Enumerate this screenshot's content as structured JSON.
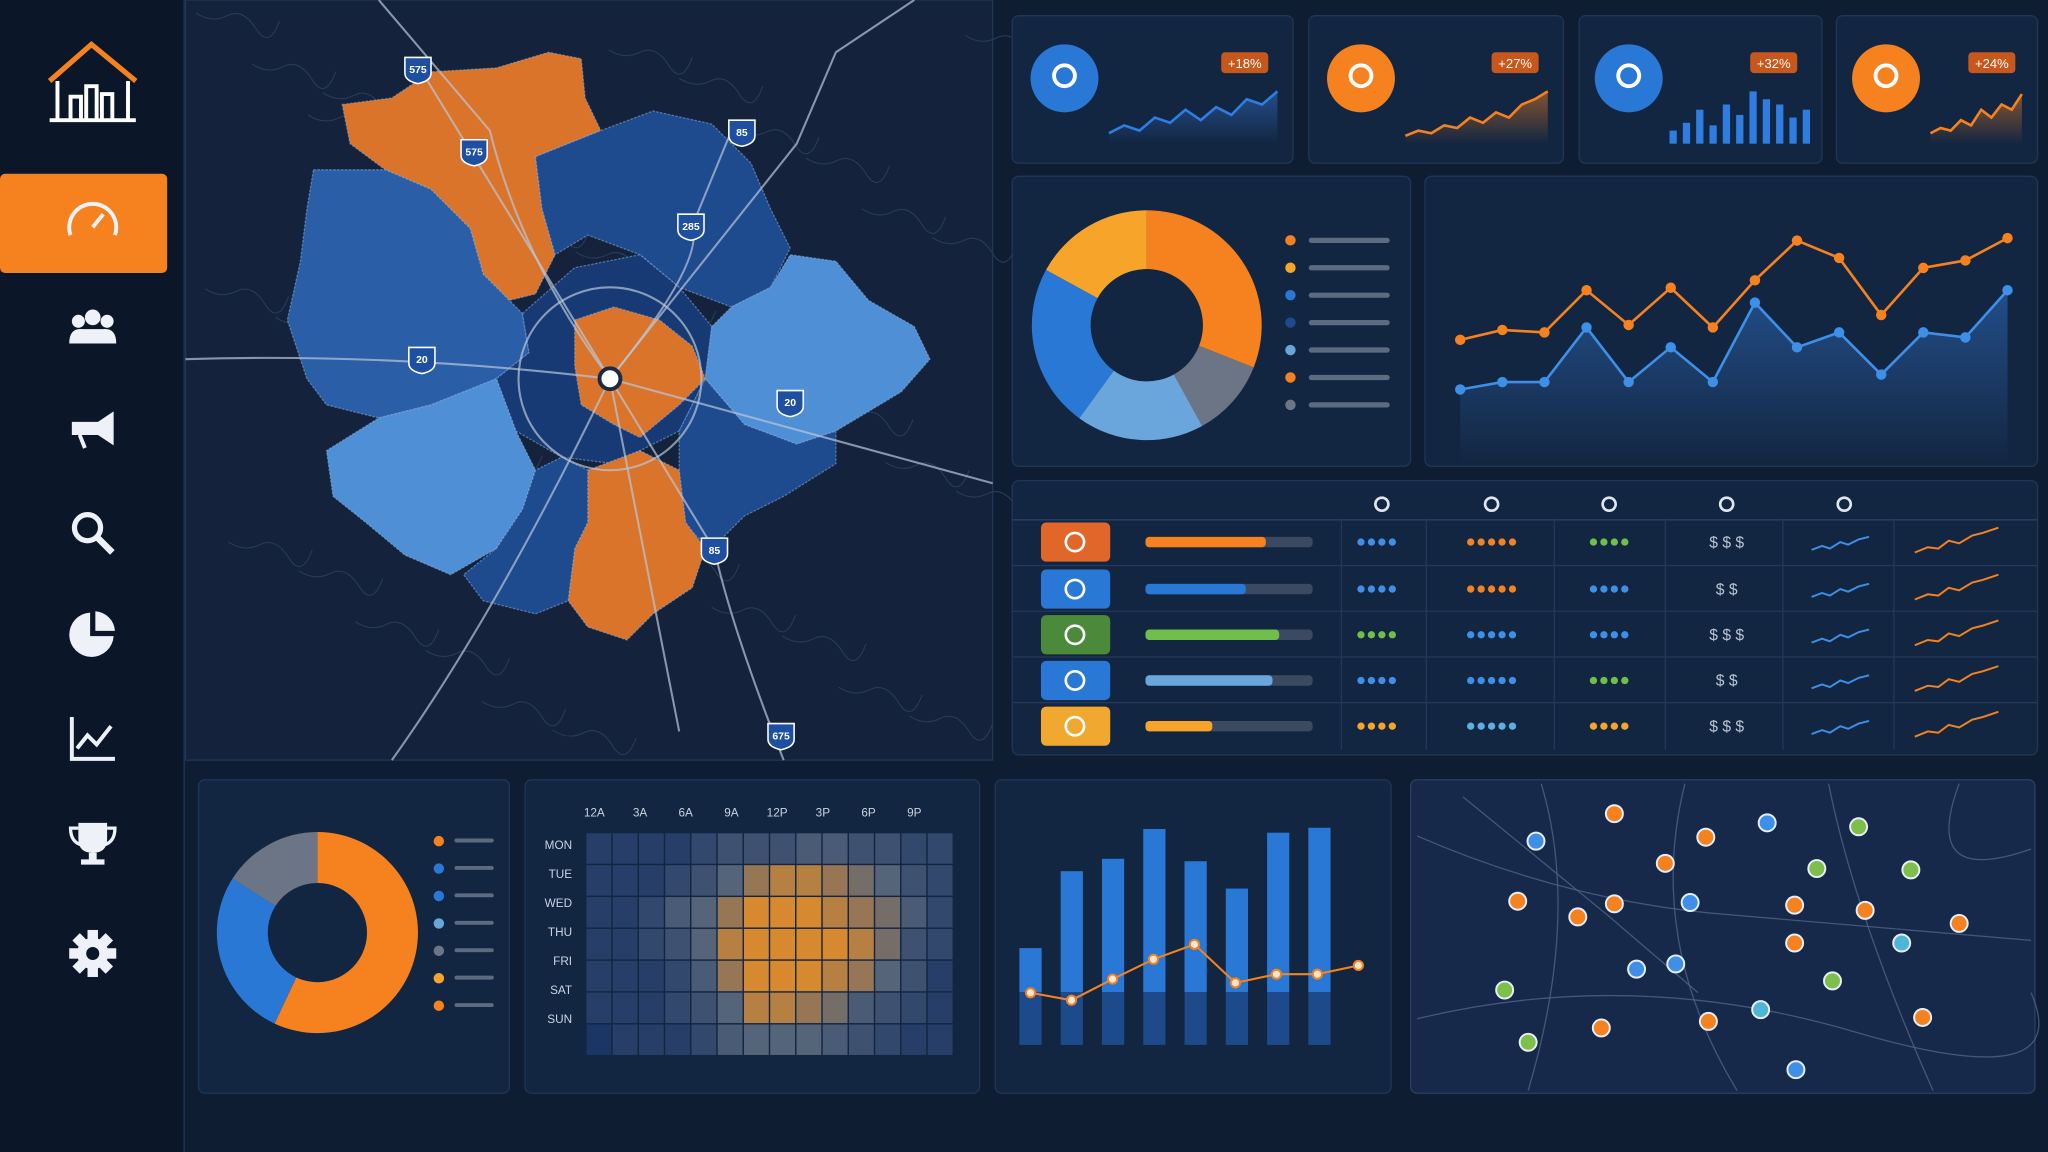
{
  "map": {
    "highways": [
      {
        "label": "575"
      },
      {
        "label": "575"
      },
      {
        "label": "85"
      },
      {
        "label": "285"
      },
      {
        "label": "20"
      },
      {
        "label": "20"
      },
      {
        "label": "85"
      },
      {
        "label": "675"
      }
    ]
  },
  "kpis": [
    {
      "change": "+18%",
      "type": "line",
      "color": "#2f7de1",
      "ylim": [
        0,
        50
      ],
      "values": [
        8,
        14,
        10,
        20,
        16,
        26,
        18,
        28,
        22,
        34,
        30,
        40
      ]
    },
    {
      "change": "+27%",
      "type": "area",
      "color": "#f5821f",
      "ylim": [
        0,
        50
      ],
      "values": [
        6,
        10,
        8,
        14,
        12,
        20,
        16,
        24,
        20,
        30,
        34,
        40
      ]
    },
    {
      "change": "+32%",
      "type": "bar",
      "color": "#2f7de1",
      "ylim": [
        0,
        50
      ],
      "values": [
        10,
        16,
        26,
        14,
        30,
        22,
        40,
        34,
        30,
        20,
        26
      ]
    },
    {
      "change": "+24%",
      "type": "area",
      "color": "#f5821f",
      "ylim": [
        0,
        50
      ],
      "values": [
        8,
        12,
        10,
        18,
        14,
        26,
        20,
        30,
        26,
        38
      ]
    }
  ],
  "donut": {
    "values": [
      31,
      11,
      18,
      23,
      17
    ],
    "colors": [
      "#f5821f",
      "#6b7585",
      "#6aa6dc",
      "#2a78d6",
      "#f7a52a"
    ]
  },
  "line_chart": {
    "ylim": [
      0,
      100
    ],
    "series": [
      {
        "color": "#f5821f",
        "values": [
          42,
          46,
          45,
          62,
          48,
          63,
          47,
          66,
          82,
          75,
          52,
          71,
          74,
          83
        ]
      },
      {
        "color": "#3d8fe8",
        "values": [
          22,
          25,
          25,
          47,
          25,
          39,
          25,
          57,
          39,
          45,
          28,
          45,
          43,
          62
        ]
      }
    ]
  },
  "table": {
    "rows": [
      {
        "color": "#e0662a",
        "bar": 72,
        "dots": [
          4,
          5,
          4
        ],
        "dot_colors": [
          "#3d8fe8",
          "#f5821f",
          "#6fbf4a"
        ],
        "price": "$ $ $"
      },
      {
        "color": "#2a78d6",
        "bar": 60,
        "dots": [
          4,
          5,
          4
        ],
        "dot_colors": [
          "#3d8fe8",
          "#f5821f",
          "#3d8fe8"
        ],
        "price": "$ $"
      },
      {
        "color": "#4c8a3b",
        "bar": 80,
        "dots": [
          4,
          5,
          4
        ],
        "dot_colors": [
          "#6fbf4a",
          "#3d8fe8",
          "#3d8fe8"
        ],
        "price": "$ $ $"
      },
      {
        "color": "#2a78d6",
        "bar": 76,
        "dots": [
          4,
          5,
          4
        ],
        "dot_colors": [
          "#3d8fe8",
          "#3d8fe8",
          "#6fbf4a"
        ],
        "price": "$ $"
      },
      {
        "color": "#f0a830",
        "bar": 40,
        "dots": [
          4,
          5,
          4
        ],
        "dot_colors": [
          "#f7a52a",
          "#5ab0e0",
          "#f7a52a"
        ],
        "price": "$ $ $"
      }
    ]
  },
  "donut2": {
    "values": [
      57,
      27,
      16
    ],
    "colors": [
      "#f5821f",
      "#2a78d6",
      "#6b7585"
    ]
  },
  "heatmap": {
    "columns": [
      "12A",
      "3A",
      "6A",
      "9A",
      "12P",
      "3P",
      "6P",
      "9P"
    ],
    "rows": [
      "MON",
      "TUE",
      "WED",
      "THU",
      "FRI",
      "SAT",
      "SUN"
    ],
    "max": 10,
    "values": [
      [
        1,
        1,
        1,
        1,
        2,
        3,
        3,
        3,
        4,
        4,
        3,
        3,
        2,
        2
      ],
      [
        1,
        1,
        1,
        2,
        3,
        5,
        7,
        8,
        8,
        7,
        6,
        5,
        3,
        2
      ],
      [
        1,
        1,
        2,
        4,
        5,
        7,
        9,
        9,
        9,
        8,
        7,
        6,
        4,
        2
      ],
      [
        1,
        1,
        2,
        3,
        5,
        8,
        9,
        9,
        9,
        9,
        8,
        6,
        3,
        2
      ],
      [
        1,
        1,
        1,
        2,
        4,
        7,
        9,
        9,
        9,
        8,
        7,
        5,
        3,
        1
      ],
      [
        1,
        1,
        1,
        2,
        3,
        5,
        8,
        8,
        7,
        6,
        4,
        3,
        2,
        1
      ],
      [
        0,
        1,
        1,
        1,
        2,
        4,
        5,
        5,
        5,
        4,
        3,
        2,
        1,
        1
      ]
    ]
  },
  "bar_chart": {
    "ylim": [
      0,
      200
    ],
    "bars": [
      78,
      140,
      150,
      174,
      148,
      126,
      171,
      175
    ],
    "line": [
      42,
      36,
      53,
      69,
      81,
      50,
      57,
      57,
      64
    ]
  }
}
